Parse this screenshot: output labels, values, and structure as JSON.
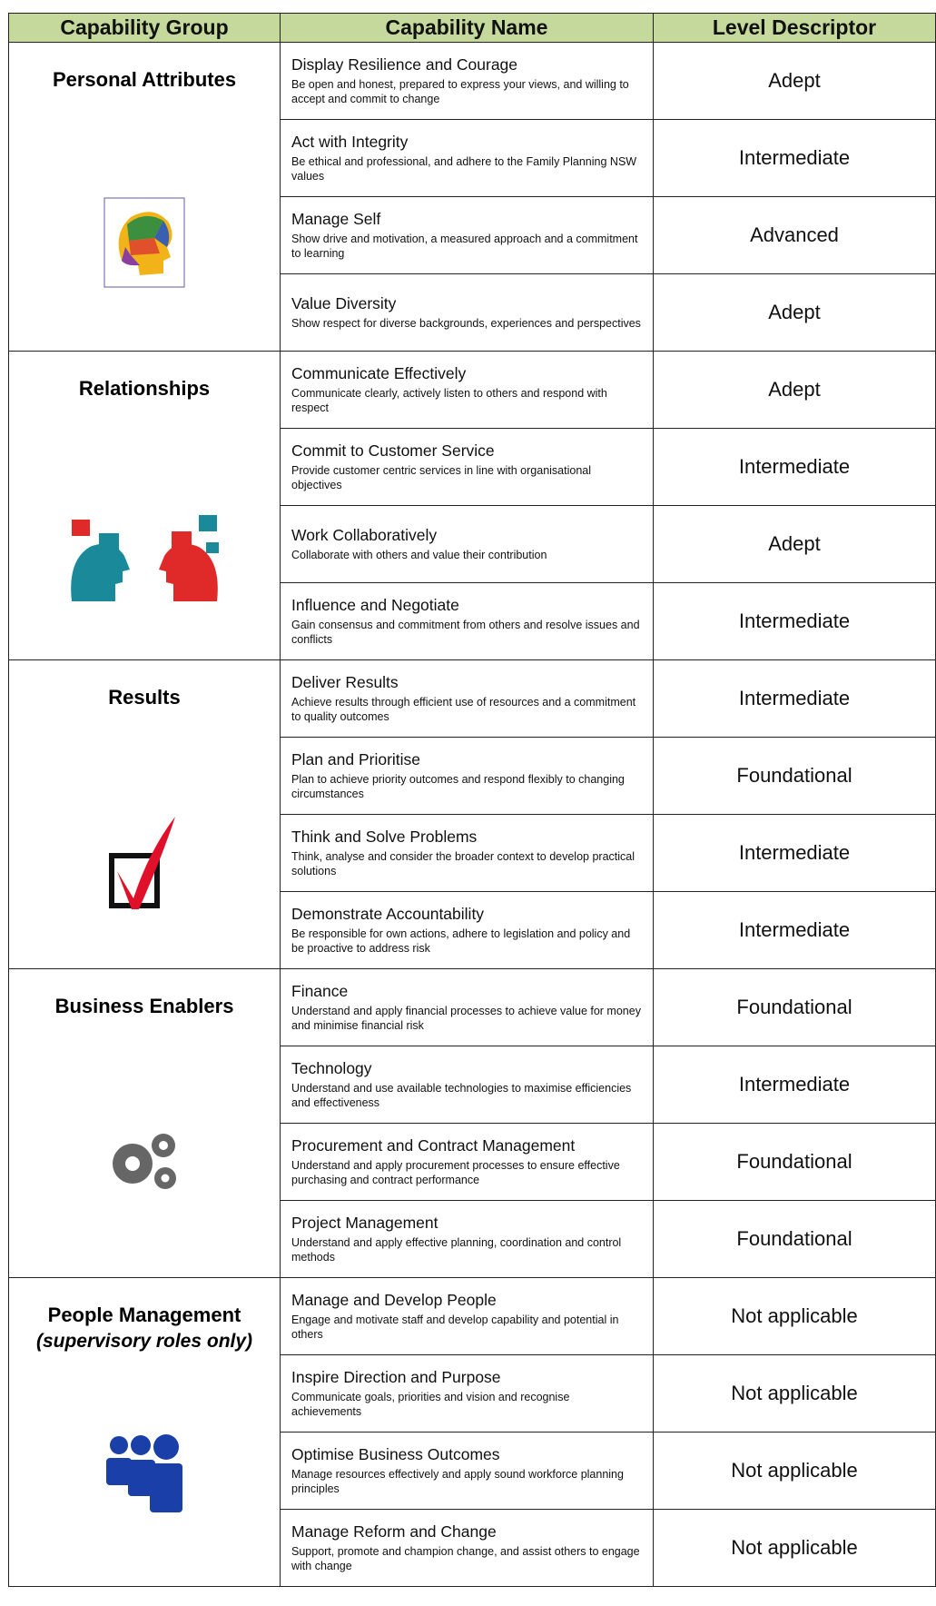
{
  "header": {
    "group": "Capability Group",
    "name": "Capability Name",
    "level": "Level Descriptor"
  },
  "groups": [
    {
      "name": "Personal Attributes",
      "capabilities": [
        {
          "name": "Display Resilience and Courage",
          "description": "Be open and honest, prepared to express your views, and willing to accept and commit to change",
          "level": "Adept"
        },
        {
          "name": "Act with Integrity",
          "description": "Be ethical and professional, and adhere to the Family Planning NSW values",
          "level": "Intermediate"
        },
        {
          "name": "Manage Self",
          "description": "Show drive and motivation, a measured approach and a commitment to learning",
          "level": "Advanced"
        },
        {
          "name": "Value Diversity",
          "description": "Show respect for diverse backgrounds, experiences and perspectives",
          "level": "Adept"
        }
      ]
    },
    {
      "name": "Relationships",
      "capabilities": [
        {
          "name": "Communicate Effectively",
          "description": "Communicate clearly, actively listen to others and respond with respect",
          "level": "Adept"
        },
        {
          "name": "Commit to Customer Service",
          "description": "Provide customer centric services in line with organisational objectives",
          "level": "Intermediate"
        },
        {
          "name": "Work Collaboratively",
          "description": "Collaborate with others and value their contribution",
          "level": "Adept"
        },
        {
          "name": "Influence and Negotiate",
          "description": "Gain consensus and commitment from others and resolve issues and conflicts",
          "level": "Intermediate"
        }
      ]
    },
    {
      "name": "Results",
      "capabilities": [
        {
          "name": "Deliver Results",
          "description": "Achieve results through efficient use of resources and a commitment to quality outcomes",
          "level": "Intermediate"
        },
        {
          "name": "Plan and Prioritise",
          "description": "Plan to achieve priority outcomes and respond flexibly to changing circumstances",
          "level": "Foundational"
        },
        {
          "name": "Think and Solve Problems",
          "description": "Think, analyse and consider the broader context to develop practical solutions",
          "level": "Intermediate"
        },
        {
          "name": "Demonstrate Accountability",
          "description": "Be responsible for own actions, adhere to legislation and policy and be proactive to address risk",
          "level": "Intermediate"
        }
      ]
    },
    {
      "name": "Business Enablers",
      "capabilities": [
        {
          "name": "Finance",
          "description": "Understand and apply financial processes to achieve value for money and minimise financial risk",
          "level": "Foundational"
        },
        {
          "name": "Technology",
          "description": "Understand and use available technologies to maximise efficiencies and effectiveness",
          "level": "Intermediate"
        },
        {
          "name": "Procurement and Contract Management",
          "description": "Understand and apply procurement processes to ensure effective purchasing and contract performance",
          "level": "Foundational"
        },
        {
          "name": "Project Management",
          "description": "Understand and apply effective planning, coordination and control methods",
          "level": "Foundational"
        }
      ]
    },
    {
      "name": "People Management",
      "subtitle": "(supervisory roles only)",
      "capabilities": [
        {
          "name": "Manage and Develop People",
          "description": "Engage and motivate staff and develop capability and potential in others",
          "level": "Not applicable"
        },
        {
          "name": "Inspire Direction and Purpose",
          "description": "Communicate goals, priorities and vision and recognise achievements",
          "level": "Not applicable"
        },
        {
          "name": "Optimise Business Outcomes",
          "description": "Manage resources effectively and apply sound workforce planning principles",
          "level": "Not applicable"
        },
        {
          "name": "Manage Reform and Change",
          "description": "Support, promote and champion change, and assist others to engage with change",
          "level": "Not applicable"
        }
      ]
    }
  ]
}
